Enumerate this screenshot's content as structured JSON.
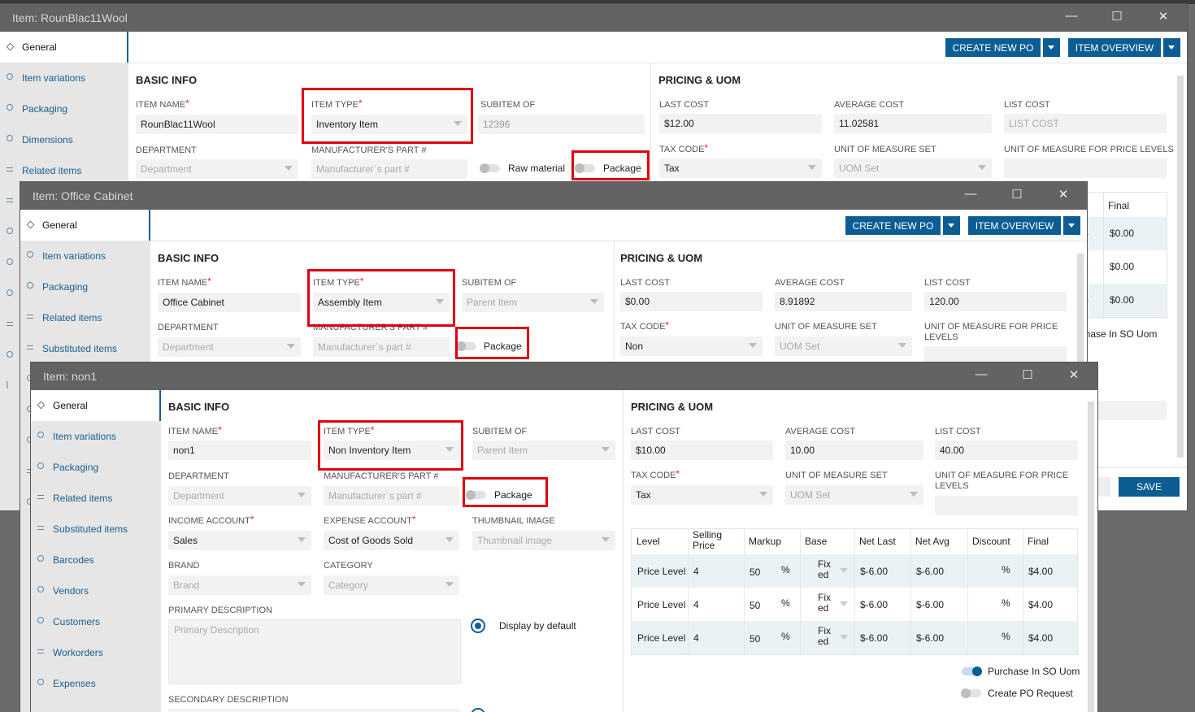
{
  "win1": {
    "title": "Item: RounBlac11Wool",
    "sidebar": [
      "General",
      "Item variations",
      "Packaging",
      "Dimensions",
      "Related items"
    ],
    "toolbar": {
      "create_po": "CREATE NEW PO",
      "overview": "ITEM OVERVIEW"
    },
    "basic": {
      "heading": "BASIC INFO",
      "item_name_label": "ITEM NAME",
      "item_name": "RounBlac11Wool",
      "item_type_label": "ITEM TYPE",
      "item_type": "Inventory Item",
      "subitem_label": "SUBITEM OF",
      "subitem": "12396",
      "department_label": "DEPARTMENT",
      "department_ph": "Department",
      "mfr_label": "MANUFACTURER'S PART #",
      "mfr_ph": "Manufacturer`s part #",
      "raw_material": "Raw material",
      "package": "Package"
    },
    "pricing": {
      "heading": "PRICING & UOM",
      "last_cost_label": "LAST COST",
      "last_cost": "$12.00",
      "avg_label": "AVERAGE COST",
      "avg": "11.02581",
      "list_label": "LIST COST",
      "list_ph": "LIST COST",
      "tax_label": "TAX CODE",
      "tax": "Tax",
      "uom_set_label": "UNIT OF MEASURE SET",
      "uom_set_ph": "UOM Set",
      "uom_price_label": "UNIT OF MEASURE FOR PRICE LEVELS",
      "final_header": "Final",
      "final_values": [
        "$0.00",
        "$0.00",
        "$0.00"
      ],
      "purchase_in_so": "Purchase In SO Uom"
    },
    "save": "SAVE"
  },
  "win2": {
    "title": "Item: Office Cabinet",
    "sidebar": [
      "General",
      "Item variations",
      "Packaging",
      "Related items",
      "Substituted items"
    ],
    "toolbar": {
      "create_po": "CREATE NEW PO",
      "overview": "ITEM OVERVIEW"
    },
    "basic": {
      "heading": "BASIC INFO",
      "item_name_label": "ITEM NAME",
      "item_name": "Office Cabinet",
      "item_type_label": "ITEM TYPE",
      "item_type": "Assembly Item",
      "subitem_label": "SUBITEM OF",
      "subitem_ph": "Parent Item",
      "department_label": "DEPARTMENT",
      "department_ph": "Department",
      "mfr_label": "MANUFACTURER'S PART #",
      "mfr_ph": "Manufacturer`s part #",
      "package": "Package"
    },
    "pricing": {
      "heading": "PRICING & UOM",
      "last_cost_label": "LAST COST",
      "last_cost": "$0.00",
      "avg_label": "AVERAGE COST",
      "avg": "8.91892",
      "list_label": "LIST COST",
      "list": "120.00",
      "tax_label": "TAX CODE",
      "tax": "Non",
      "uom_set_label": "UNIT OF MEASURE SET",
      "uom_set_ph": "UOM Set",
      "uom_price_label": "UNIT OF MEASURE FOR PRICE LEVELS"
    }
  },
  "win3": {
    "title": "Item: non1",
    "sidebar": [
      "General",
      "Item variations",
      "Packaging",
      "Related items",
      "Substituted items",
      "Barcodes",
      "Vendors",
      "Customers",
      "Workorders",
      "Expenses"
    ],
    "basic": {
      "heading": "BASIC INFO",
      "item_name_label": "ITEM NAME",
      "item_name": "non1",
      "item_type_label": "ITEM TYPE",
      "item_type": "Non Inventory Item",
      "subitem_label": "SUBITEM OF",
      "subitem_ph": "Parent Item",
      "department_label": "DEPARTMENT",
      "department_ph": "Department",
      "mfr_label": "MANUFACTURER'S PART #",
      "mfr_ph": "Manufacturer`s part #",
      "package": "Package",
      "income_label": "INCOME ACCOUNT",
      "income": "Sales",
      "expense_label": "EXPENSE ACCOUNT",
      "expense": "Cost of Goods Sold",
      "thumb_label": "THUMBNAIL IMAGE",
      "thumb_ph": "Thumbnail image",
      "brand_label": "BRAND",
      "brand_ph": "Brand",
      "category_label": "CATEGORY",
      "category_ph": "Category",
      "primary_label": "PRIMARY DESCRIPTION",
      "primary_ph": "Primary Description",
      "display_default": "Display by default",
      "secondary_label": "SECONDARY DESCRIPTION"
    },
    "pricing": {
      "heading": "PRICING & UOM",
      "last_cost_label": "LAST COST",
      "last_cost": "$10.00",
      "avg_label": "AVERAGE COST",
      "avg": "10.00",
      "list_label": "LIST COST",
      "list": "40.00",
      "tax_label": "TAX CODE",
      "tax": "Tax",
      "uom_set_label": "UNIT OF MEASURE SET",
      "uom_set_ph": "UOM Set",
      "uom_price_label": "UNIT OF MEASURE FOR PRICE LEVELS",
      "table": {
        "headers": [
          "Level",
          "Selling Price",
          "Markup",
          "Base",
          "Net Last",
          "Net Avg",
          "Discount",
          "Final"
        ],
        "rows": [
          {
            "level": "Price Level",
            "selling": "4",
            "markup": "50",
            "markup_unit": "%",
            "base": "Fixed",
            "net_last": "$-6.00",
            "net_avg": "$-6.00",
            "discount_unit": "%",
            "final": "$4.00"
          },
          {
            "level": "Price Level",
            "selling": "4",
            "markup": "50",
            "markup_unit": "%",
            "base": "Fixed",
            "net_last": "$-6.00",
            "net_avg": "$-6.00",
            "discount_unit": "%",
            "final": "$4.00"
          },
          {
            "level": "Price Level",
            "selling": "4",
            "markup": "50",
            "markup_unit": "%",
            "base": "Fixed",
            "net_last": "$-6.00",
            "net_avg": "$-6.00",
            "discount_unit": "%",
            "final": "$4.00"
          }
        ]
      },
      "purchase_in_so": "Purchase In SO Uom",
      "create_po_request": "Create PO Request"
    }
  }
}
